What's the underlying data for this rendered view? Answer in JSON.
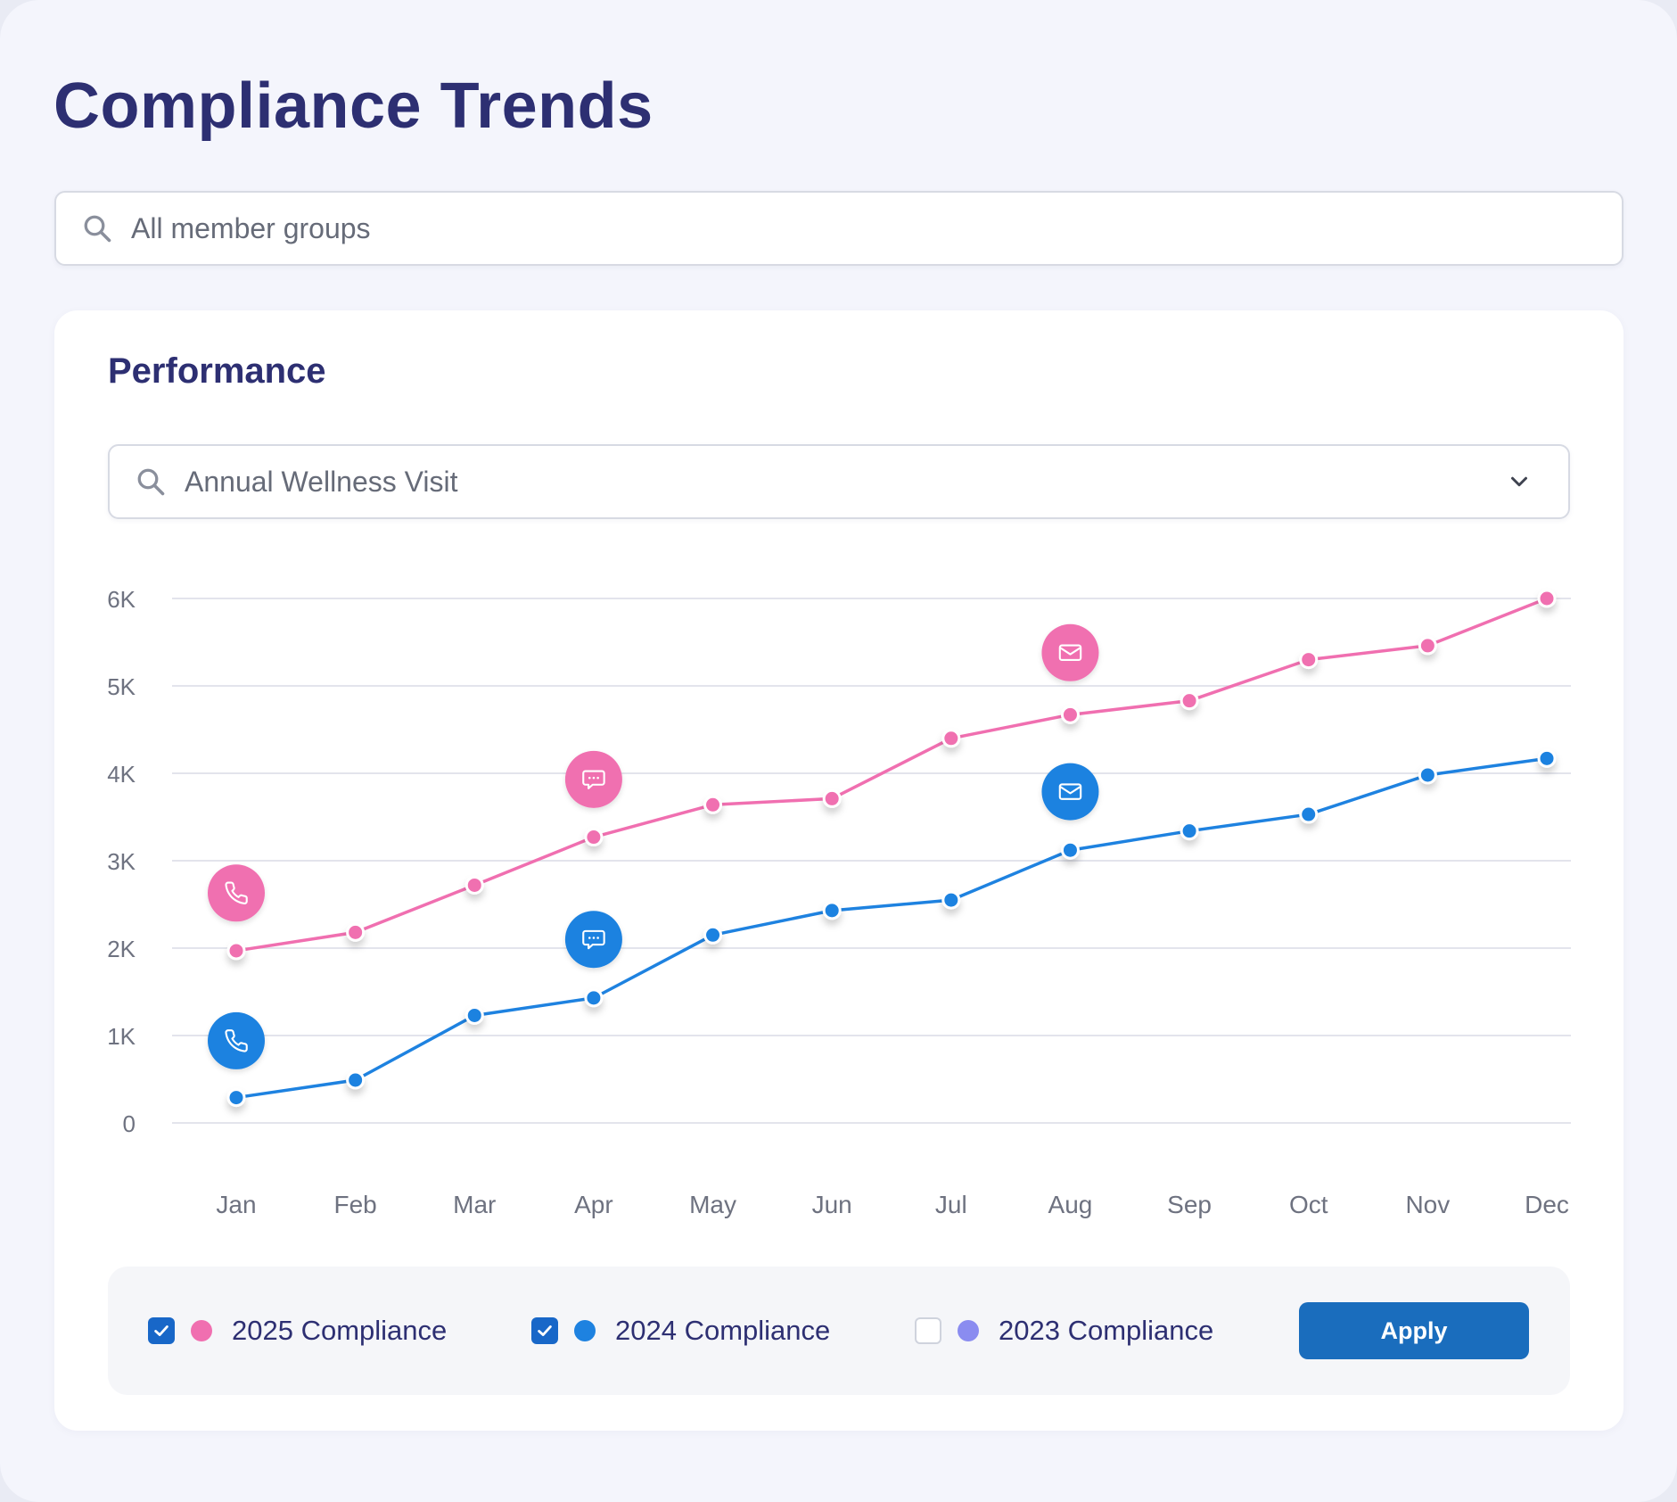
{
  "page": {
    "title": "Compliance Trends"
  },
  "filters": {
    "member_group_placeholder": "All member groups",
    "measure_value": "Annual Wellness Visit"
  },
  "card": {
    "title": "Performance"
  },
  "chart_data": {
    "type": "line",
    "title": "Performance",
    "xlabel": "",
    "ylabel": "",
    "categories": [
      "Jan",
      "Feb",
      "Mar",
      "Apr",
      "May",
      "Jun",
      "Jul",
      "Aug",
      "Sep",
      "Oct",
      "Nov",
      "Dec"
    ],
    "y_ticks": [
      0,
      1000,
      2000,
      3000,
      4000,
      5000,
      6000
    ],
    "y_tick_labels": [
      "0",
      "1K",
      "2K",
      "3K",
      "4K",
      "5K",
      "6K"
    ],
    "ylim": [
      0,
      6000
    ],
    "grid": true,
    "series": [
      {
        "name": "2025 Compliance",
        "color": "#f06fb0",
        "values": [
          1970,
          2180,
          2720,
          3270,
          3640,
          3710,
          4400,
          4670,
          4830,
          5300,
          5460,
          6000
        ]
      },
      {
        "name": "2024 Compliance",
        "color": "#1e82e0",
        "values": [
          290,
          490,
          1230,
          1430,
          2150,
          2430,
          2550,
          3120,
          3340,
          3530,
          3980,
          4170
        ]
      }
    ],
    "annotations": [
      {
        "series": "2025 Compliance",
        "month": "Jan",
        "value": 2630,
        "icon": "phone-icon"
      },
      {
        "series": "2025 Compliance",
        "month": "Apr",
        "value": 3930,
        "icon": "message-icon"
      },
      {
        "series": "2025 Compliance",
        "month": "Aug",
        "value": 5380,
        "icon": "mail-icon"
      },
      {
        "series": "2024 Compliance",
        "month": "Jan",
        "value": 940,
        "icon": "phone-icon"
      },
      {
        "series": "2024 Compliance",
        "month": "Apr",
        "value": 2100,
        "icon": "message-icon"
      },
      {
        "series": "2024 Compliance",
        "month": "Aug",
        "value": 3790,
        "icon": "mail-icon"
      }
    ]
  },
  "legend": {
    "items": [
      {
        "label": "2025 Compliance",
        "color": "#f06fb0",
        "checked": true
      },
      {
        "label": "2024 Compliance",
        "color": "#1e82e0",
        "checked": true
      },
      {
        "label": "2023 Compliance",
        "color": "#8a8cf0",
        "checked": false
      }
    ],
    "apply_label": "Apply"
  }
}
